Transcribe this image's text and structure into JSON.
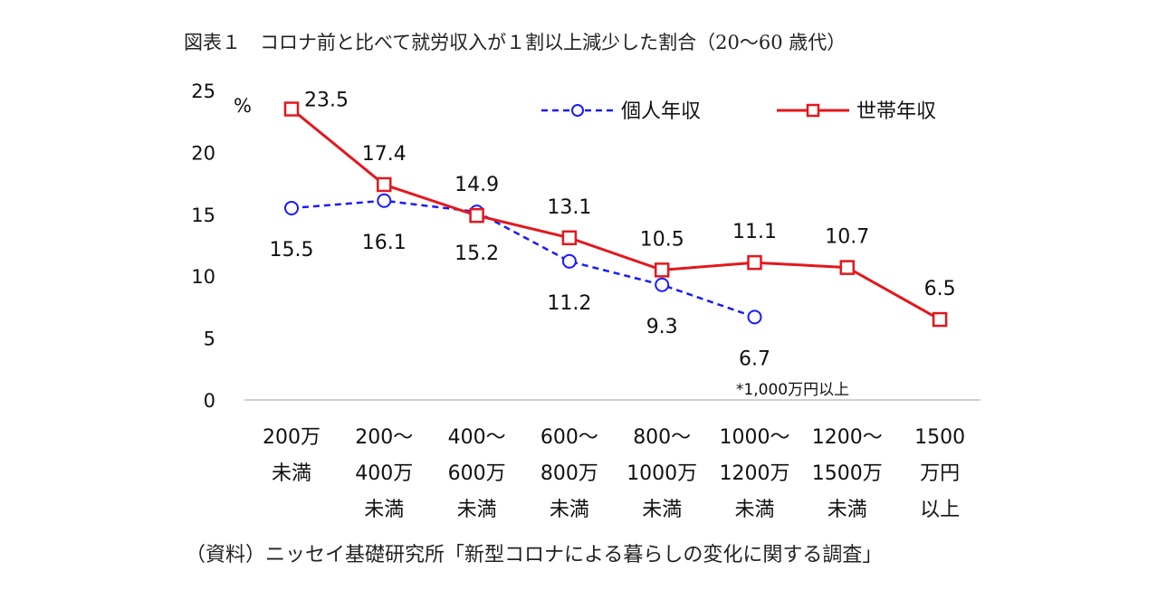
{
  "chart_data": {
    "type": "line",
    "title": "図表１　コロナ前と比べて就労収入が１割以上減少した割合（20～60 歳代）",
    "source": "（資料）ニッセイ基礎研究所「新型コロナによる暮らしの変化に関する調査」",
    "y_unit": "%",
    "ylim": [
      0,
      25
    ],
    "yticks": [
      "0",
      "5",
      "10",
      "15",
      "20",
      "25"
    ],
    "categories": [
      [
        "200万",
        "未満"
      ],
      [
        "200～",
        "400万",
        "未満"
      ],
      [
        "400～",
        "600万",
        "未満"
      ],
      [
        "600～",
        "800万",
        "未満"
      ],
      [
        "800～",
        "1000万",
        "未満"
      ],
      [
        "1000～",
        "1200万",
        "未満"
      ],
      [
        "1200～",
        "1500万",
        "未満"
      ],
      [
        "1500",
        "万円",
        "以上"
      ]
    ],
    "series": [
      {
        "name": "個人年収",
        "color": "#1a1aff",
        "style": "dashed",
        "marker": "circle",
        "values": [
          15.5,
          16.1,
          15.2,
          11.2,
          9.3,
          6.7,
          null,
          null
        ]
      },
      {
        "name": "世帯年収",
        "color": "#e3171c",
        "style": "solid",
        "marker": "square",
        "values": [
          23.5,
          17.4,
          14.9,
          13.1,
          10.5,
          11.1,
          10.7,
          6.5
        ]
      }
    ],
    "annotations": [
      {
        "text": "*1,000万円以上",
        "category_index": 5
      }
    ],
    "grid": false,
    "legend_position": "top-right"
  }
}
